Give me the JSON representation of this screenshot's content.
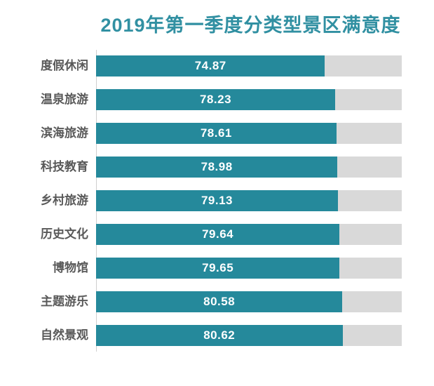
{
  "chart_data": {
    "type": "bar",
    "orientation": "horizontal",
    "title": "2019年第一季度分类型景区满意度",
    "categories": [
      "度假休闲",
      "温泉旅游",
      "滨海旅游",
      "科技教育",
      "乡村旅游",
      "历史文化",
      "博物馆",
      "主题游乐",
      "自然景观"
    ],
    "values": [
      74.87,
      78.23,
      78.61,
      78.98,
      79.13,
      79.64,
      79.65,
      80.58,
      80.62
    ],
    "value_labels": [
      "74.87",
      "78.23",
      "78.61",
      "78.98",
      "79.13",
      "79.64",
      "79.65",
      "80.58",
      "80.62"
    ],
    "xlim": [
      0,
      100
    ],
    "grid": false,
    "legend": false,
    "colors": {
      "bar": "#25899b",
      "track": "#d9d9d9",
      "title": "#3190a2",
      "category_label": "#595959",
      "value_label": "#ffffff",
      "axis_line": "#cfcfcf",
      "background": "#ffffff"
    }
  }
}
